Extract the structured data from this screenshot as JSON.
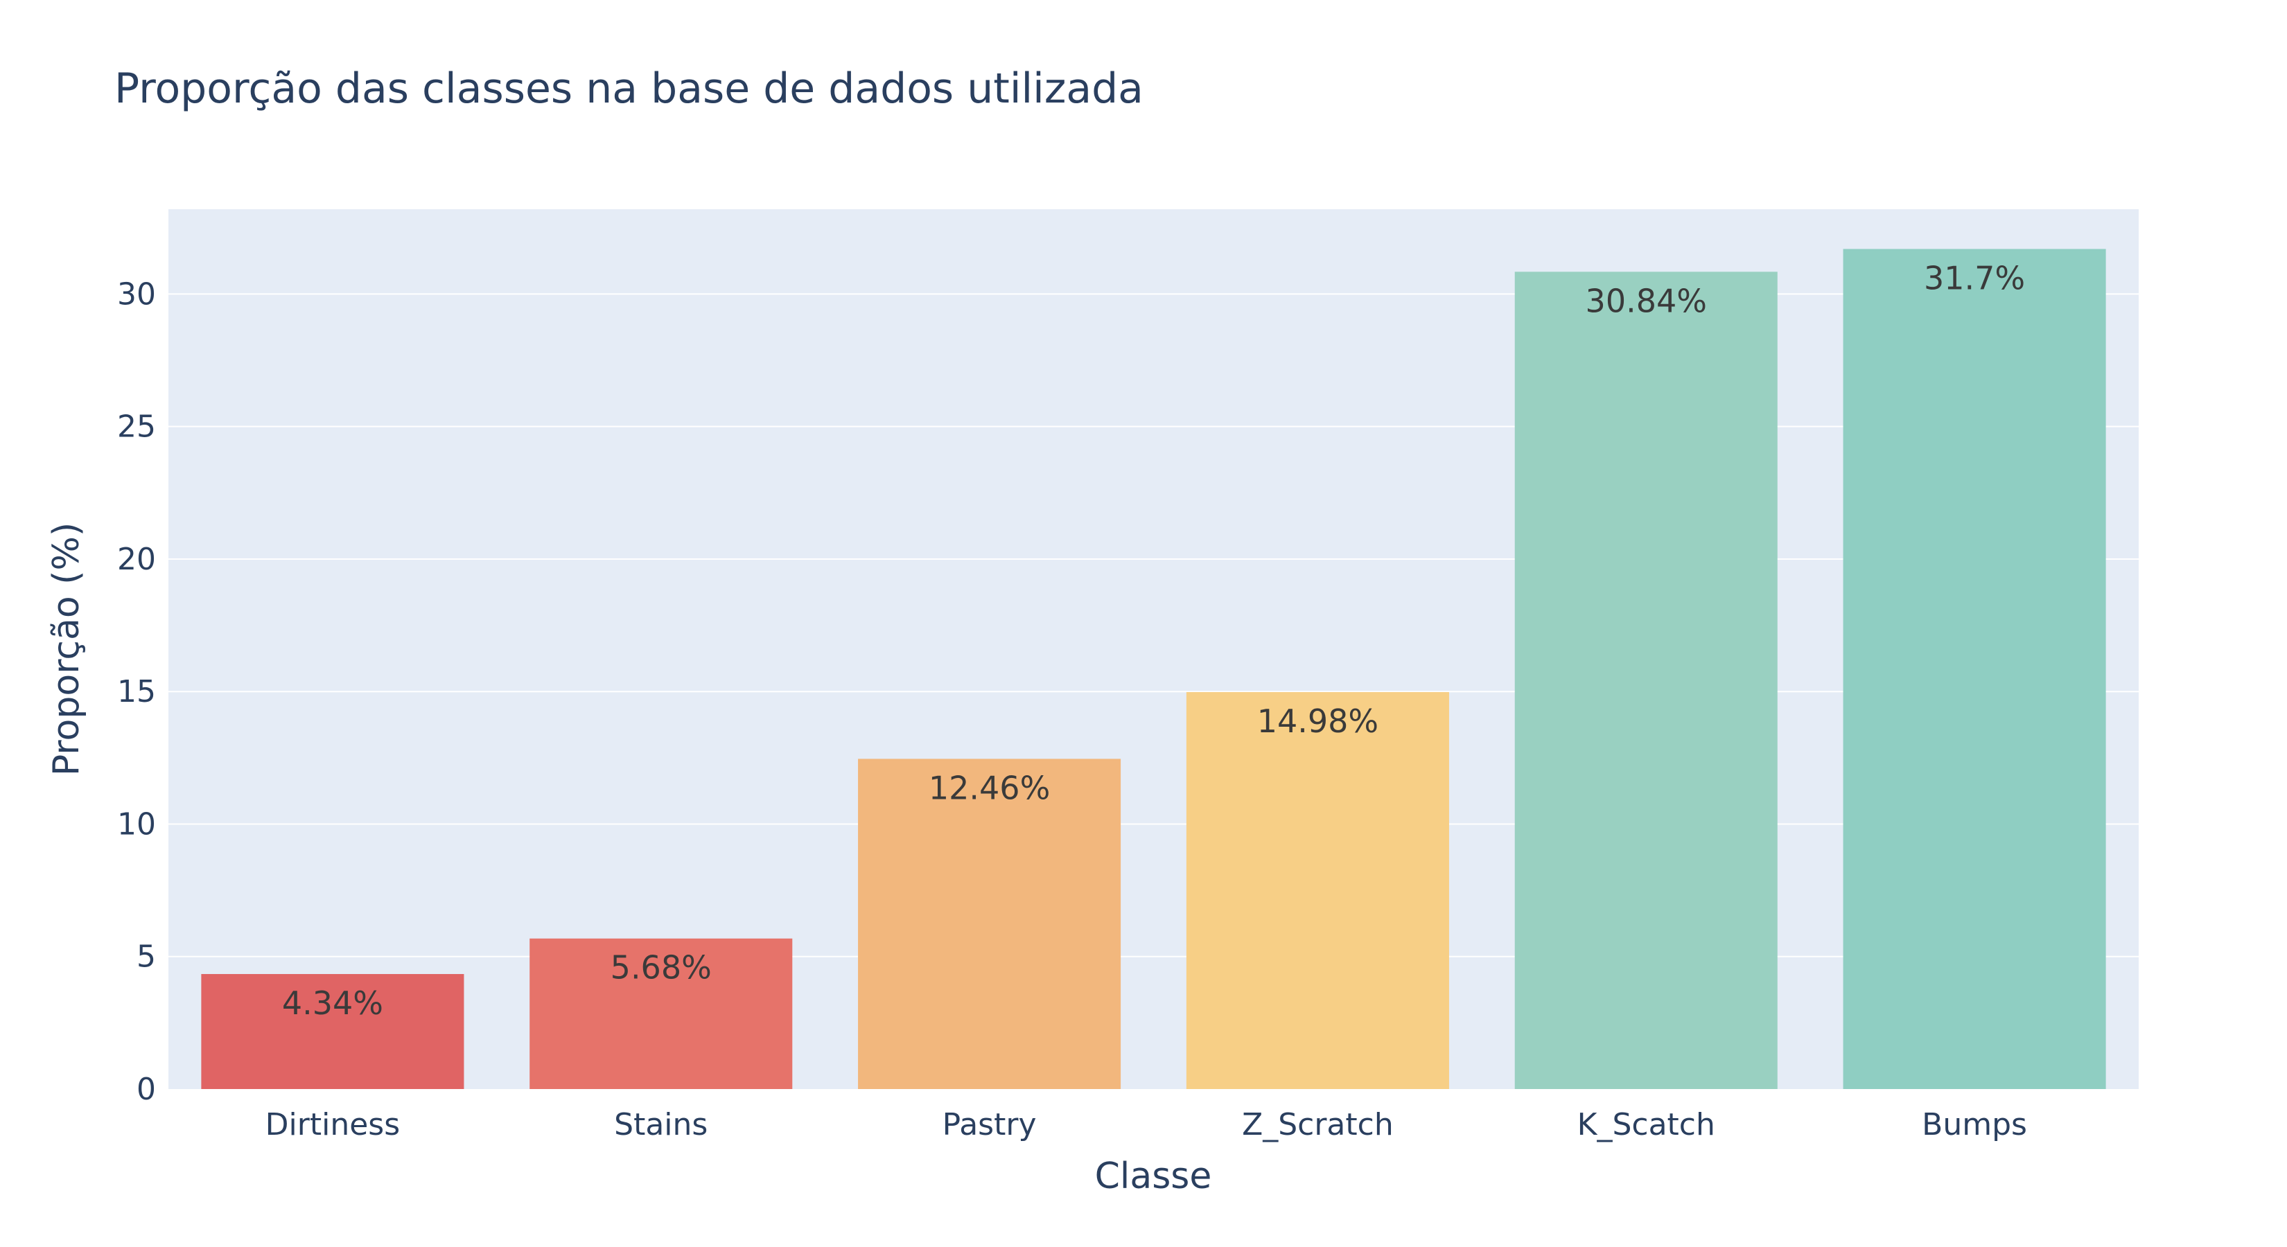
{
  "chart_data": {
    "type": "bar",
    "title": "Proporção das classes na base de dados utilizada",
    "xlabel": "Classe",
    "ylabel": "Proporção (%)",
    "categories": [
      "Dirtiness",
      "Stains",
      "Pastry",
      "Z_Scratch",
      "K_Scatch",
      "Bumps"
    ],
    "values": [
      4.34,
      5.68,
      12.46,
      14.98,
      30.84,
      31.7
    ],
    "data_labels": [
      "4.34%",
      "5.68%",
      "12.46%",
      "14.98%",
      "30.84%",
      "31.7%"
    ],
    "bar_colors": [
      "#e06464",
      "#e6736a",
      "#f2b77d",
      "#f7cf86",
      "#99d0c1",
      "#8fcec2"
    ],
    "ylim": [
      0,
      33.2
    ],
    "yticks": [
      0,
      5,
      10,
      15,
      20,
      25,
      30
    ],
    "grid": true,
    "background_color": "#e5ecf6",
    "gridline_color": "#ffffff",
    "text_color": "#2a3f5f"
  }
}
